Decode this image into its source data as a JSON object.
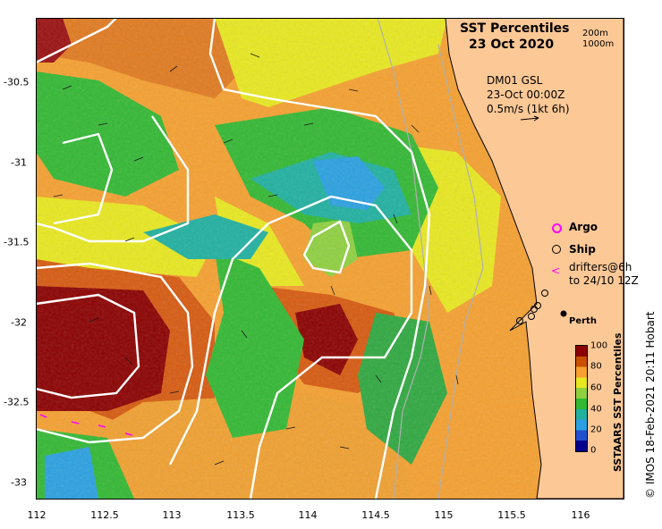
{
  "title_line1": "SST Percentiles",
  "title_line2": "23 Oct 2020",
  "isobaths": [
    "200m",
    "1000m"
  ],
  "current_info": [
    "DM01 GSL",
    "23-Oct 00:00Z",
    "0.5m/s (1kt 6h)"
  ],
  "legend": {
    "argo": "Argo",
    "ship": "Ship",
    "drifters_line1": "drifters@6h",
    "drifters_line2": "to 24/10 12Z"
  },
  "place_label": "Perth",
  "colorbar": {
    "title": "SSTAARS SST Percentiles",
    "ticks": [
      "100",
      "80",
      "60",
      "40",
      "20",
      "0"
    ],
    "colors": [
      "#8b0000",
      "#c85000",
      "#f5a030",
      "#e8e820",
      "#8fd040",
      "#33b833",
      "#20b0a0",
      "#2aa0e0",
      "#2050d0",
      "#00008b"
    ]
  },
  "credit": "© IMOS 18-Feb-2021 20:11 Hobart",
  "x_ticks": [
    "112",
    "112.5",
    "113",
    "113.5",
    "114",
    "114.5",
    "115",
    "115.5",
    "116"
  ],
  "y_ticks": [
    "-30.5",
    "-31",
    "-31.5",
    "-32",
    "-32.5",
    "-33"
  ],
  "colors": {
    "land": "#fcc896",
    "contour": "#ffffff",
    "coast": "#000000",
    "argo": "#ff00ff",
    "drifter": "#ff00ff"
  }
}
